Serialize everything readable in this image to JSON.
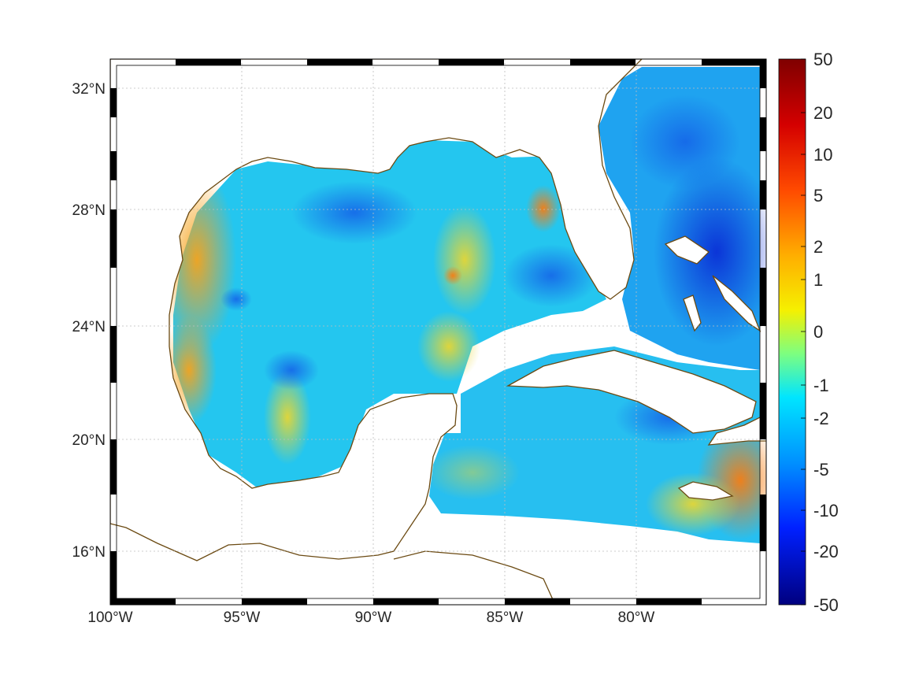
{
  "map": {
    "lon_ticks": [
      "100°W",
      "95°W",
      "90°W",
      "85°W",
      "80°W"
    ],
    "lat_ticks": [
      "16°N",
      "20°N",
      "24°N",
      "28°N",
      "32°N"
    ],
    "extent": {
      "lon_min": -100,
      "lon_max": -75,
      "lat_min": 14.5,
      "lat_max": 33
    },
    "coastline_color": "#6b4a12",
    "grid": "dotted",
    "colormap": "jet"
  },
  "colorbar": {
    "ticks": [
      "50",
      "20",
      "10",
      "5",
      "2",
      "1",
      "0",
      "-1",
      "-2",
      "-5",
      "-10",
      "-20",
      "-50"
    ],
    "range": [
      -50,
      50
    ]
  }
}
